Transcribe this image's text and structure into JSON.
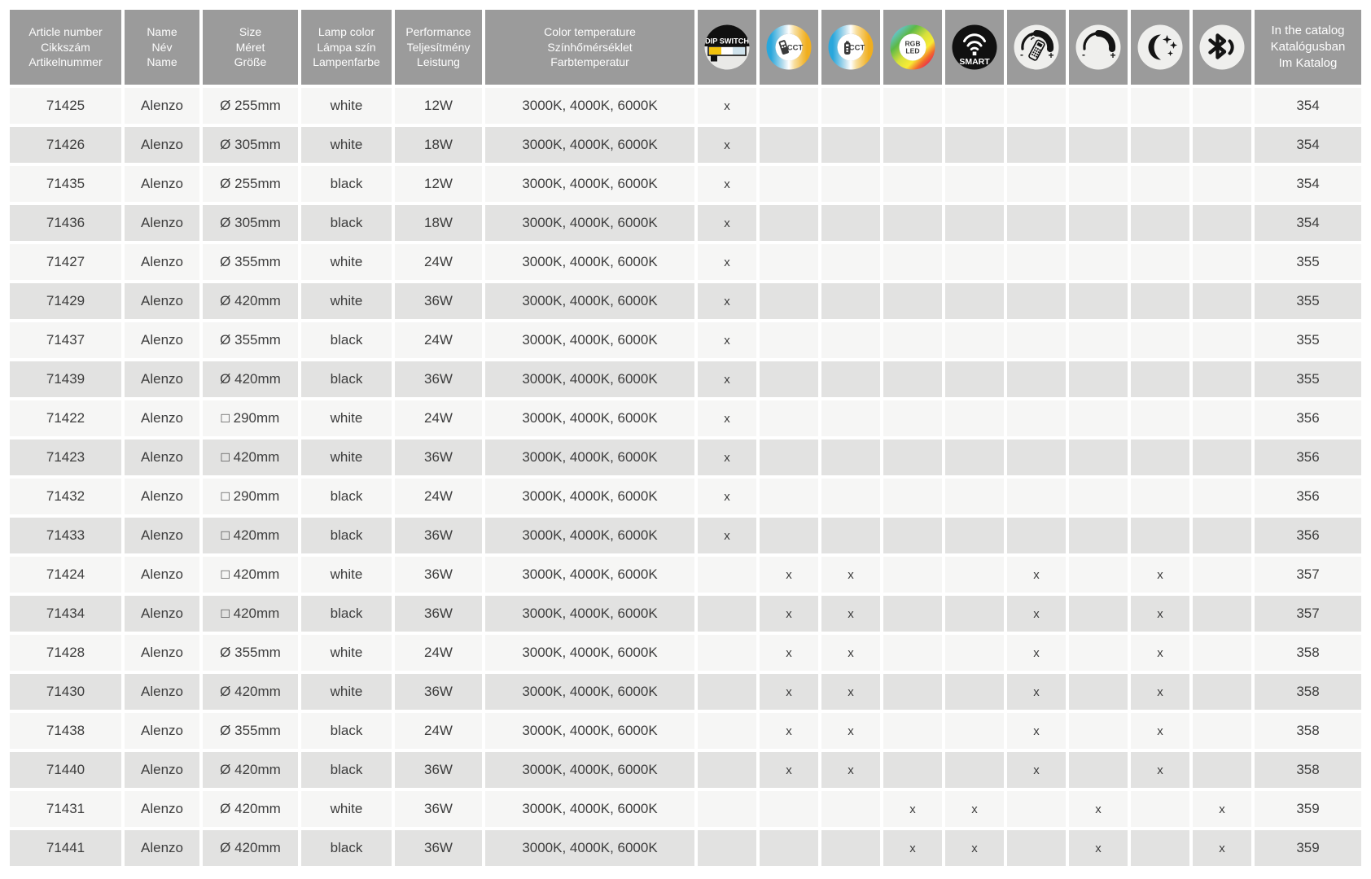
{
  "header": {
    "text_columns": [
      {
        "id": "article-number",
        "lines": [
          "Article number",
          "Cikkszám",
          "Artikelnummer"
        ]
      },
      {
        "id": "name",
        "lines": [
          "Name",
          "Név",
          "Name"
        ]
      },
      {
        "id": "size",
        "lines": [
          "Size",
          "Méret",
          "Größe"
        ]
      },
      {
        "id": "lamp-color",
        "lines": [
          "Lamp color",
          "Lámpa szín",
          "Lampenfarbe"
        ]
      },
      {
        "id": "performance",
        "lines": [
          "Performance",
          "Teljesítmény",
          "Leistung"
        ]
      },
      {
        "id": "color-temperature",
        "lines": [
          "Color temperature",
          "Színhőmérséklet",
          "Farbtemperatur"
        ]
      }
    ],
    "icon_columns": [
      {
        "id": "dip-switch",
        "label": "DIP SWITCH"
      },
      {
        "id": "cct-remote",
        "label": "CCT"
      },
      {
        "id": "cct-controller",
        "label": "CCT"
      },
      {
        "id": "rgb-led",
        "label": "RGB LED"
      },
      {
        "id": "smart",
        "label": "SMART"
      },
      {
        "id": "remote-dimming",
        "label": "remote dimming"
      },
      {
        "id": "dimming",
        "label": "dimming"
      },
      {
        "id": "night-light",
        "label": "night light"
      },
      {
        "id": "bluetooth",
        "label": "bluetooth"
      }
    ],
    "catalog_column": {
      "id": "in-the-catalog",
      "lines": [
        "In the catalog",
        "Katalógusban",
        "Im Katalog"
      ]
    }
  },
  "marker": "x",
  "colors": {
    "header_bg": "#9b9b9b",
    "row_light": "#f6f6f5",
    "row_dark": "#e2e2e1",
    "text": "#3d3d3d",
    "dip_yellow": "#f2c20d",
    "dip_blue": "#cfe2ec",
    "cct_blue": "#29a7dc",
    "cct_amber": "#f0ae1f"
  },
  "rows": [
    {
      "article": "71425",
      "name": "Alenzo",
      "size": "Ø 255mm",
      "lamp_color": "white",
      "performance": "12W",
      "color_temperature": "3000K, 4000K, 6000K",
      "features": [
        "dip-switch"
      ],
      "catalog": "354"
    },
    {
      "article": "71426",
      "name": "Alenzo",
      "size": "Ø 305mm",
      "lamp_color": "white",
      "performance": "18W",
      "color_temperature": "3000K, 4000K, 6000K",
      "features": [
        "dip-switch"
      ],
      "catalog": "354"
    },
    {
      "article": "71435",
      "name": "Alenzo",
      "size": "Ø 255mm",
      "lamp_color": "black",
      "performance": "12W",
      "color_temperature": "3000K, 4000K, 6000K",
      "features": [
        "dip-switch"
      ],
      "catalog": "354"
    },
    {
      "article": "71436",
      "name": "Alenzo",
      "size": "Ø 305mm",
      "lamp_color": "black",
      "performance": "18W",
      "color_temperature": "3000K, 4000K, 6000K",
      "features": [
        "dip-switch"
      ],
      "catalog": "354"
    },
    {
      "article": "71427",
      "name": "Alenzo",
      "size": "Ø 355mm",
      "lamp_color": "white",
      "performance": "24W",
      "color_temperature": "3000K, 4000K, 6000K",
      "features": [
        "dip-switch"
      ],
      "catalog": "355"
    },
    {
      "article": "71429",
      "name": "Alenzo",
      "size": "Ø 420mm",
      "lamp_color": "white",
      "performance": "36W",
      "color_temperature": "3000K, 4000K, 6000K",
      "features": [
        "dip-switch"
      ],
      "catalog": "355"
    },
    {
      "article": "71437",
      "name": "Alenzo",
      "size": "Ø 355mm",
      "lamp_color": "black",
      "performance": "24W",
      "color_temperature": "3000K, 4000K, 6000K",
      "features": [
        "dip-switch"
      ],
      "catalog": "355"
    },
    {
      "article": "71439",
      "name": "Alenzo",
      "size": "Ø 420mm",
      "lamp_color": "black",
      "performance": "36W",
      "color_temperature": "3000K, 4000K, 6000K",
      "features": [
        "dip-switch"
      ],
      "catalog": "355"
    },
    {
      "article": "71422",
      "name": "Alenzo",
      "size": "□ 290mm",
      "lamp_color": "white",
      "performance": "24W",
      "color_temperature": "3000K, 4000K, 6000K",
      "features": [
        "dip-switch"
      ],
      "catalog": "356"
    },
    {
      "article": "71423",
      "name": "Alenzo",
      "size": "□ 420mm",
      "lamp_color": "white",
      "performance": "36W",
      "color_temperature": "3000K, 4000K, 6000K",
      "features": [
        "dip-switch"
      ],
      "catalog": "356"
    },
    {
      "article": "71432",
      "name": "Alenzo",
      "size": "□ 290mm",
      "lamp_color": "black",
      "performance": "24W",
      "color_temperature": "3000K, 4000K, 6000K",
      "features": [
        "dip-switch"
      ],
      "catalog": "356"
    },
    {
      "article": "71433",
      "name": "Alenzo",
      "size": "□ 420mm",
      "lamp_color": "black",
      "performance": "36W",
      "color_temperature": "3000K, 4000K, 6000K",
      "features": [
        "dip-switch"
      ],
      "catalog": "356"
    },
    {
      "article": "71424",
      "name": "Alenzo",
      "size": "□ 420mm",
      "lamp_color": "white",
      "performance": "36W",
      "color_temperature": "3000K, 4000K, 6000K",
      "features": [
        "cct-remote",
        "cct-controller",
        "remote-dimming",
        "night-light"
      ],
      "catalog": "357"
    },
    {
      "article": "71434",
      "name": "Alenzo",
      "size": "□ 420mm",
      "lamp_color": "black",
      "performance": "36W",
      "color_temperature": "3000K, 4000K, 6000K",
      "features": [
        "cct-remote",
        "cct-controller",
        "remote-dimming",
        "night-light"
      ],
      "catalog": "357"
    },
    {
      "article": "71428",
      "name": "Alenzo",
      "size": "Ø 355mm",
      "lamp_color": "white",
      "performance": "24W",
      "color_temperature": "3000K, 4000K, 6000K",
      "features": [
        "cct-remote",
        "cct-controller",
        "remote-dimming",
        "night-light"
      ],
      "catalog": "358"
    },
    {
      "article": "71430",
      "name": "Alenzo",
      "size": "Ø 420mm",
      "lamp_color": "white",
      "performance": "36W",
      "color_temperature": "3000K, 4000K, 6000K",
      "features": [
        "cct-remote",
        "cct-controller",
        "remote-dimming",
        "night-light"
      ],
      "catalog": "358"
    },
    {
      "article": "71438",
      "name": "Alenzo",
      "size": "Ø 355mm",
      "lamp_color": "black",
      "performance": "24W",
      "color_temperature": "3000K, 4000K, 6000K",
      "features": [
        "cct-remote",
        "cct-controller",
        "remote-dimming",
        "night-light"
      ],
      "catalog": "358"
    },
    {
      "article": "71440",
      "name": "Alenzo",
      "size": "Ø 420mm",
      "lamp_color": "black",
      "performance": "36W",
      "color_temperature": "3000K, 4000K, 6000K",
      "features": [
        "cct-remote",
        "cct-controller",
        "remote-dimming",
        "night-light"
      ],
      "catalog": "358"
    },
    {
      "article": "71431",
      "name": "Alenzo",
      "size": "Ø 420mm",
      "lamp_color": "white",
      "performance": "36W",
      "color_temperature": "3000K, 4000K, 6000K",
      "features": [
        "rgb-led",
        "smart",
        "dimming",
        "bluetooth"
      ],
      "catalog": "359"
    },
    {
      "article": "71441",
      "name": "Alenzo",
      "size": "Ø 420mm",
      "lamp_color": "black",
      "performance": "36W",
      "color_temperature": "3000K, 4000K, 6000K",
      "features": [
        "rgb-led",
        "smart",
        "dimming",
        "bluetooth"
      ],
      "catalog": "359"
    }
  ]
}
